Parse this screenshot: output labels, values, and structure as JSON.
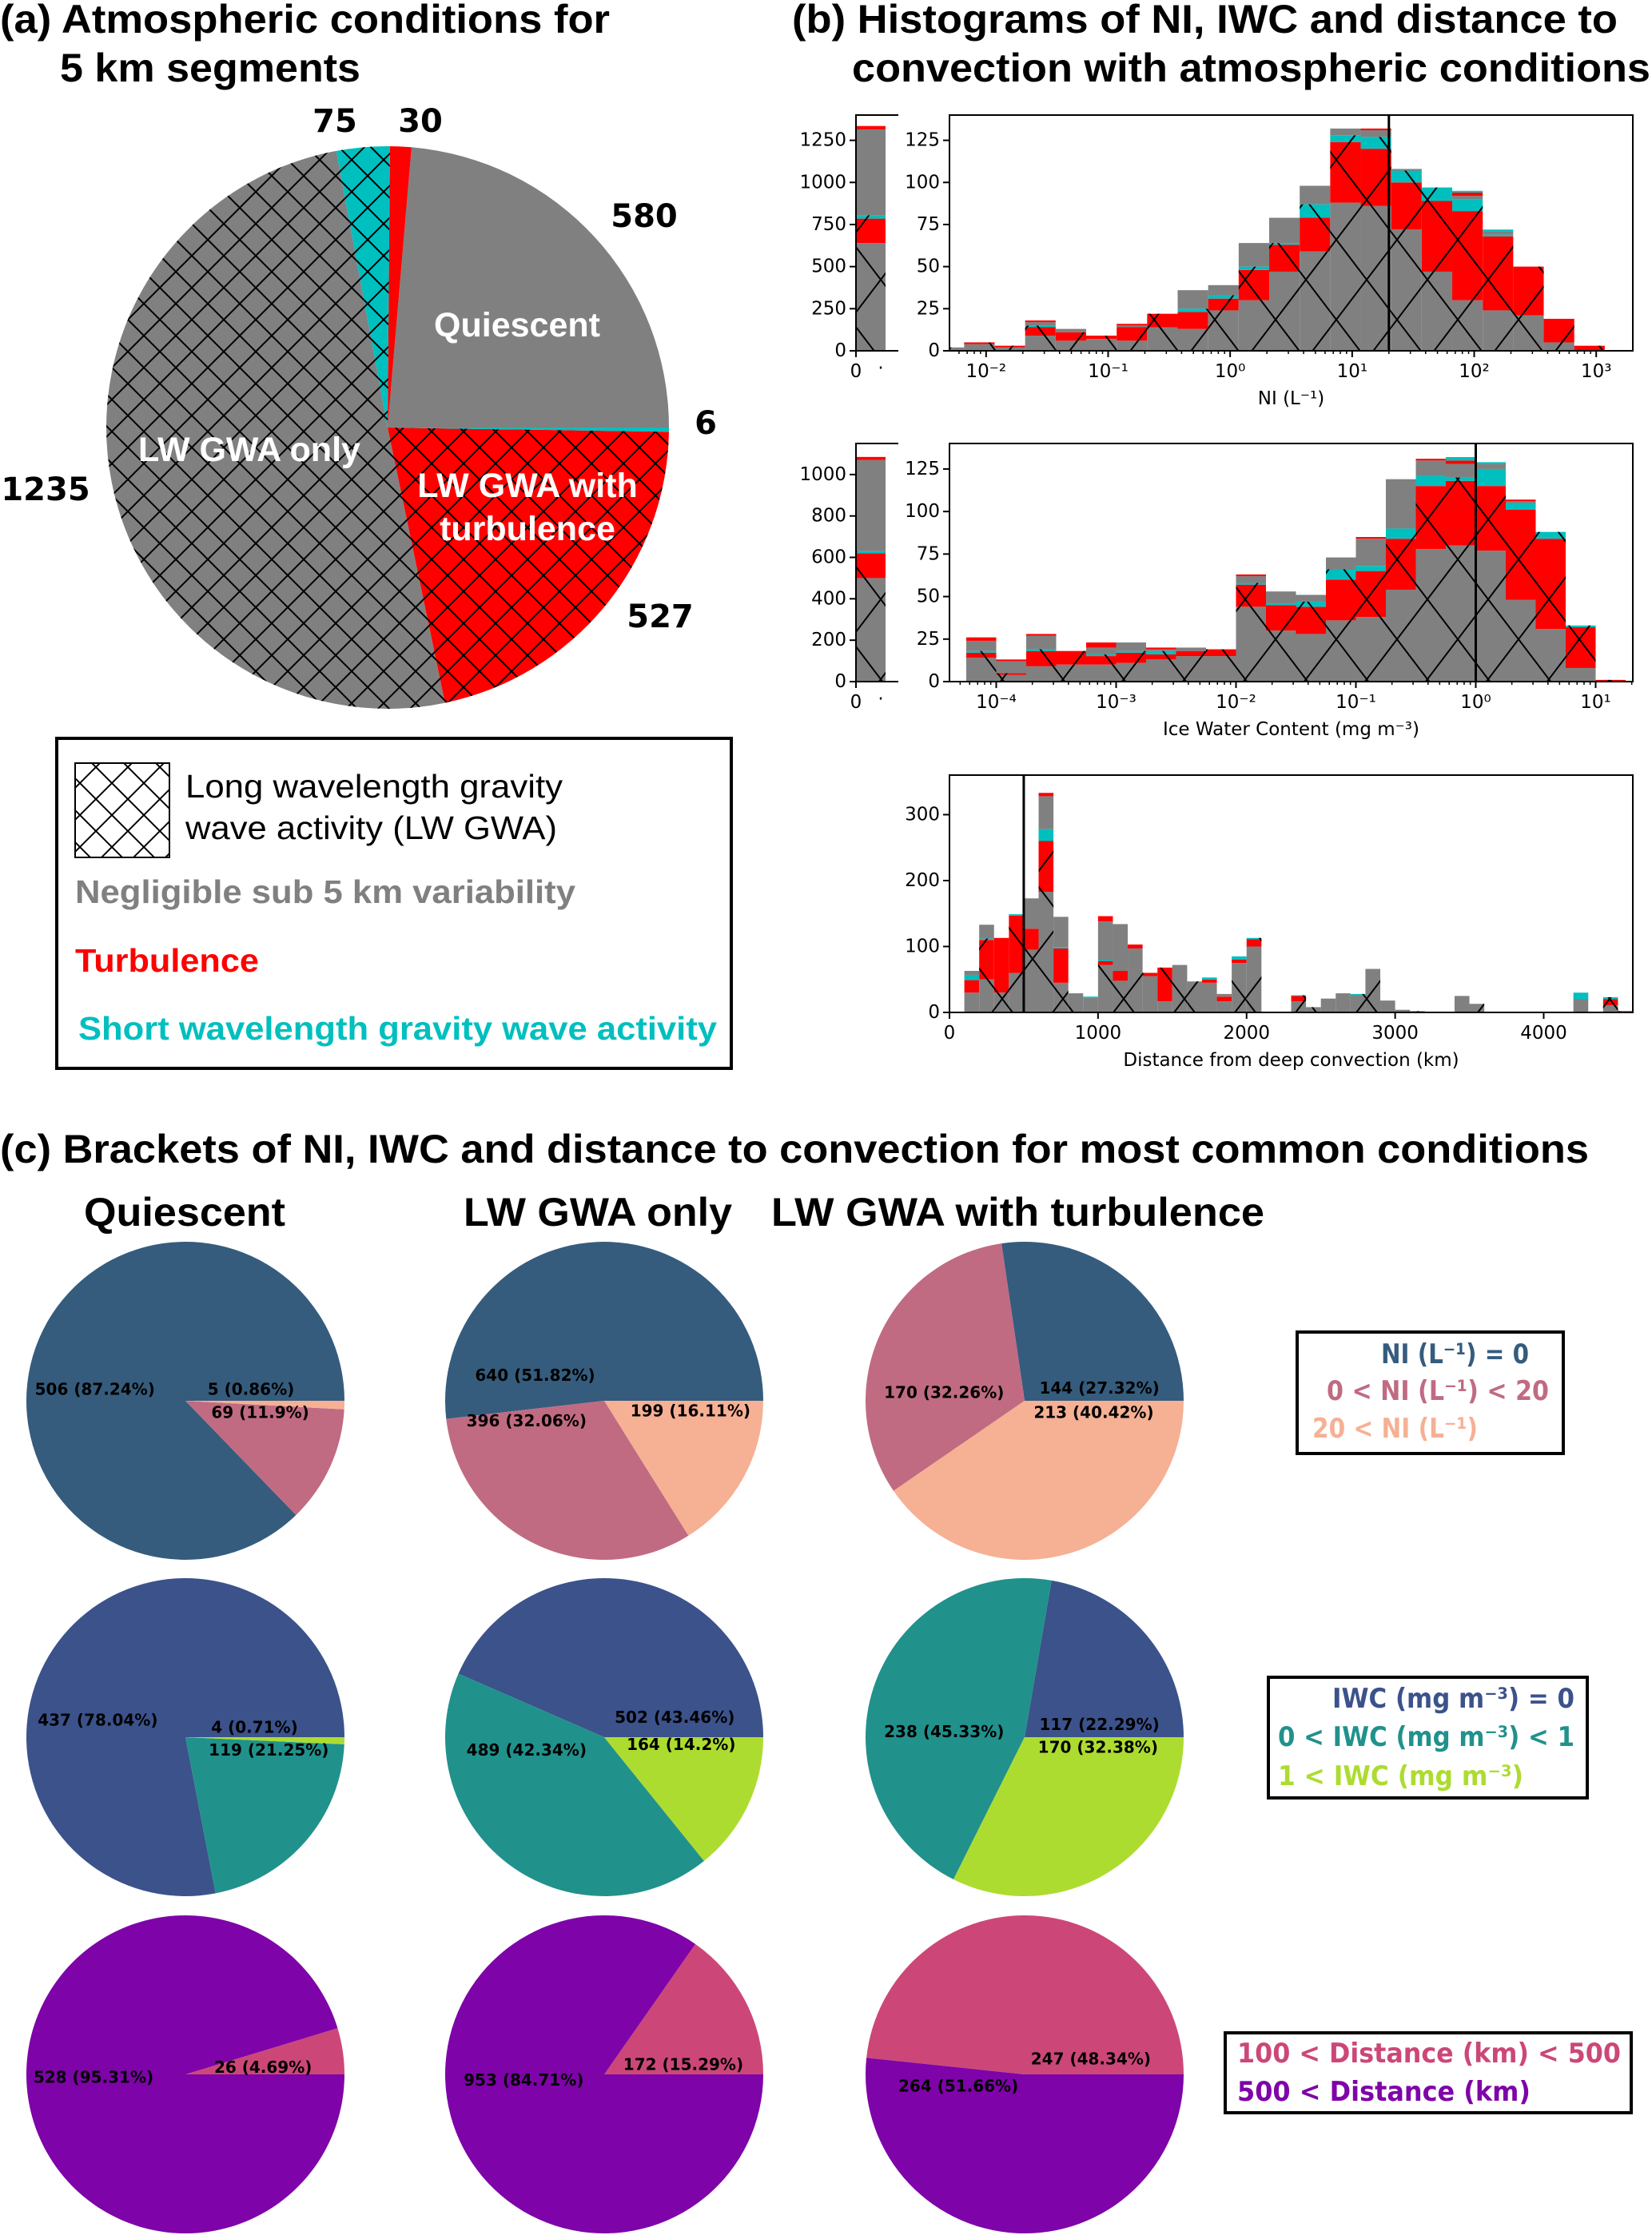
{
  "panel_a": {
    "title": [
      "(a) Atmospheric conditions for",
      "5 km segments"
    ],
    "legend": {
      "hatch_label": [
        "Long wavelength gravity",
        "wave activity (LW GWA)"
      ],
      "items": [
        {
          "text": "Negligible sub 5 km variability",
          "color": "#808080"
        },
        {
          "text": "Turbulence",
          "color": "#ff0000"
        },
        {
          "text": "Short wavelength gravity wave activity",
          "color": "#00bfbf"
        }
      ]
    }
  },
  "panel_b": {
    "title": [
      "(b) Histograms of NI, IWC and distance to",
      "convection with atmospheric conditions"
    ],
    "layers": [
      {
        "color": "#808080",
        "hatch": true
      },
      {
        "color": "#ff0000",
        "hatch": true
      },
      {
        "color": "#00bfbf",
        "hatch": true
      },
      {
        "color": "#808080",
        "hatch": false
      },
      {
        "color": "#ff0000",
        "hatch": false
      },
      {
        "color": "#00bfbf",
        "hatch": false
      }
    ]
  },
  "panel_c": {
    "title": "(c) Brackets of NI, IWC and distance to convection for most common conditions",
    "columns": [
      "Quiescent",
      "LW GWA only",
      "LW GWA with turbulence"
    ],
    "legends": [
      {
        "items": [
          {
            "text": "NI (L⁻¹) = 0",
            "color": "#355c7d"
          },
          {
            "text": "0 < NI (L⁻¹) < 20",
            "color": "#c06b82"
          },
          {
            "text": "20 < NI (L⁻¹)",
            "color": "#f6b094"
          }
        ]
      },
      {
        "items": [
          {
            "text": "IWC (mg m⁻³) = 0",
            "color": "#3b528b"
          },
          {
            "text": "0 < IWC (mg m⁻³) < 1",
            "color": "#21918c"
          },
          {
            "text": "1 < IWC (mg m⁻³)",
            "color": "#addc30"
          }
        ]
      },
      {
        "items": [
          {
            "text": "100 < Distance (km) < 500",
            "color": "#cc4778"
          },
          {
            "text": "500 < Distance (km)",
            "color": "#7e03a8"
          }
        ]
      }
    ]
  },
  "chart_data": [
    {
      "type": "pie",
      "title": "(a) Atmospheric conditions for 5 km segments",
      "start_angle_deg": 0,
      "direction": "counterclockwise",
      "slices": [
        {
          "value": 580,
          "value_label": "580",
          "color": "#808080",
          "hatch": false,
          "inner_label": [
            "Quiescent"
          ]
        },
        {
          "value": 30,
          "value_label": "30",
          "color": "#ff0000",
          "hatch": false
        },
        {
          "value": 75,
          "value_label": "75",
          "color": "#00bfbf",
          "hatch": true
        },
        {
          "value": 1235,
          "value_label": "1235",
          "color": "#808080",
          "hatch": true,
          "inner_label": [
            "LW GWA only"
          ]
        },
        {
          "value": 527,
          "value_label": "527",
          "color": "#ff0000",
          "hatch": true,
          "inner_label": [
            "LW GWA with",
            "turbulence"
          ]
        },
        {
          "value": 6,
          "value_label": "6",
          "color": "#00bfbf",
          "hatch": false
        }
      ]
    },
    {
      "type": "bar",
      "stacked": true,
      "xlabel": "NI (L⁻¹)",
      "xscale": "log",
      "xlim_log10": [
        -2.3,
        3.3
      ],
      "ylim": [
        0,
        140
      ],
      "yticks": [
        0,
        25,
        50,
        75,
        100,
        125
      ],
      "xticks": [
        {
          "value": -2,
          "label": "10⁻²"
        },
        {
          "value": -1,
          "label": "10⁻¹"
        },
        {
          "value": 0,
          "label": "10⁰"
        },
        {
          "value": 1,
          "label": "10¹"
        },
        {
          "value": 2,
          "label": "10²"
        },
        {
          "value": 3,
          "label": "10³"
        }
      ],
      "ref_value": 20,
      "bin_start_log10": -2.43,
      "bin_width_log10": 0.25,
      "bins": [
        [
          2,
          0,
          0,
          0,
          0,
          0
        ],
        [
          4,
          1,
          0,
          0,
          0,
          0
        ],
        [
          2,
          1,
          0,
          0,
          0,
          0
        ],
        [
          9,
          5,
          1,
          2,
          1,
          0
        ],
        [
          6,
          5,
          0,
          2,
          0,
          0
        ],
        [
          7,
          2,
          0,
          0,
          0,
          0
        ],
        [
          6,
          8,
          0,
          1,
          1,
          0
        ],
        [
          14,
          8,
          0,
          0,
          0,
          0
        ],
        [
          13,
          10,
          2,
          11,
          0,
          0
        ],
        [
          24,
          7,
          2,
          6,
          0,
          0
        ],
        [
          30,
          18,
          2,
          14,
          0,
          0
        ],
        [
          47,
          16,
          1,
          15,
          0,
          0
        ],
        [
          59,
          20,
          8,
          11,
          0,
          0
        ],
        [
          88,
          36,
          4,
          4,
          0,
          0
        ],
        [
          86,
          34,
          7,
          4,
          1,
          0
        ],
        [
          72,
          28,
          7,
          1,
          0,
          0
        ],
        [
          47,
          42,
          8,
          0,
          0,
          0
        ],
        [
          30,
          53,
          7,
          2,
          2,
          1
        ],
        [
          24,
          44,
          1,
          2,
          0,
          1
        ],
        [
          21,
          29,
          0,
          0,
          0,
          0
        ],
        [
          5,
          14,
          0,
          0,
          0,
          0
        ],
        [
          0,
          3,
          0,
          0,
          0,
          0
        ]
      ],
      "zero_bin": {
        "ylim": [
          0,
          1400
        ],
        "yticks": [
          0,
          250,
          500,
          750,
          1000,
          1250
        ],
        "stack": [
          640,
          145,
          20,
          510,
          20,
          0
        ],
        "xtick_labels": [
          "0",
          "·"
        ]
      }
    },
    {
      "type": "bar",
      "stacked": true,
      "xlabel": "Ice Water Content (mg m⁻³)",
      "xscale": "log",
      "xlim_log10": [
        -4.39,
        1.31
      ],
      "ylim": [
        0,
        140
      ],
      "yticks": [
        0,
        25,
        50,
        75,
        100,
        125
      ],
      "xticks": [
        {
          "value": -4,
          "label": "10⁻⁴"
        },
        {
          "value": -3,
          "label": "10⁻³"
        },
        {
          "value": -2,
          "label": "10⁻²"
        },
        {
          "value": -1,
          "label": "10⁻¹"
        },
        {
          "value": 0,
          "label": "10⁰"
        },
        {
          "value": 1,
          "label": "10¹"
        }
      ],
      "ref_value": 1,
      "bin_start_log10": -4.25,
      "bin_width_log10": 0.25,
      "bins": [
        [
          14,
          3,
          1,
          6,
          2,
          0
        ],
        [
          4,
          1,
          0,
          7,
          1,
          0
        ],
        [
          9,
          9,
          1,
          8,
          1,
          0
        ],
        [
          10,
          8,
          0,
          0,
          0,
          0
        ],
        [
          10,
          5,
          1,
          4,
          3,
          0
        ],
        [
          11,
          6,
          1,
          5,
          0,
          0
        ],
        [
          13,
          3,
          2,
          1,
          1,
          0
        ],
        [
          15,
          3,
          0,
          2,
          0,
          0
        ],
        [
          15,
          4,
          0,
          0,
          0,
          0
        ],
        [
          44,
          13,
          1,
          4,
          1,
          0
        ],
        [
          30,
          15,
          1,
          7,
          0,
          0
        ],
        [
          28,
          16,
          3,
          4,
          0,
          0
        ],
        [
          36,
          24,
          6,
          7,
          0,
          0
        ],
        [
          38,
          27,
          3,
          16,
          1,
          0
        ],
        [
          54,
          30,
          6,
          29,
          0,
          0
        ],
        [
          78,
          37,
          6,
          9,
          1,
          0
        ],
        [
          80,
          38,
          2,
          8,
          2,
          2
        ],
        [
          77,
          38,
          10,
          3,
          0,
          1
        ],
        [
          48,
          53,
          4,
          1,
          1,
          0
        ],
        [
          31,
          53,
          4,
          0,
          0,
          0
        ],
        [
          8,
          24,
          1,
          0,
          0,
          0
        ],
        [
          0,
          1,
          0,
          0,
          0,
          0
        ]
      ],
      "zero_bin": {
        "ylim": [
          0,
          1150
        ],
        "yticks": [
          0,
          200,
          400,
          600,
          800,
          1000
        ],
        "stack": [
          500,
          120,
          10,
          440,
          15,
          0
        ],
        "xtick_labels": [
          "0",
          "·"
        ]
      }
    },
    {
      "type": "bar",
      "stacked": true,
      "xlabel": "Distance from deep convection (km)",
      "xscale": "linear",
      "xlim": [
        0,
        4600
      ],
      "ylim": [
        0,
        360
      ],
      "yticks": [
        0,
        100,
        200,
        300
      ],
      "xticks": [
        {
          "value": 0,
          "label": "0"
        },
        {
          "value": 1000,
          "label": "1000"
        },
        {
          "value": 2000,
          "label": "2000"
        },
        {
          "value": 3000,
          "label": "3000"
        },
        {
          "value": 4000,
          "label": "4000"
        }
      ],
      "ref_value": 500,
      "bin_start": 100,
      "bin_width": 100,
      "bins": [
        [
          30,
          19,
          8,
          6,
          0,
          0
        ],
        [
          50,
          60,
          2,
          21,
          0,
          0
        ],
        [
          30,
          83,
          0,
          0,
          0,
          0
        ],
        [
          60,
          87,
          2,
          0,
          0,
          0
        ],
        [
          95,
          32,
          0,
          46,
          0,
          0
        ],
        [
          183,
          77,
          18,
          50,
          5,
          0
        ],
        [
          45,
          52,
          2,
          46,
          0,
          0
        ],
        [
          29,
          0,
          0,
          0,
          0,
          0
        ],
        [
          22,
          0,
          2,
          0,
          0,
          0
        ],
        [
          72,
          6,
          2,
          58,
          8,
          0
        ],
        [
          48,
          15,
          0,
          71,
          0,
          0
        ],
        [
          97,
          0,
          0,
          0,
          6,
          0
        ],
        [
          55,
          5,
          0,
          0,
          0,
          0
        ],
        [
          17,
          51,
          0,
          0,
          0,
          0
        ],
        [
          72,
          0,
          0,
          0,
          0,
          0
        ],
        [
          47,
          0,
          0,
          0,
          0,
          0
        ],
        [
          45,
          5,
          3,
          0,
          0,
          0
        ],
        [
          17,
          7,
          0,
          4,
          0,
          0
        ],
        [
          75,
          5,
          5,
          0,
          0,
          0
        ],
        [
          100,
          11,
          2,
          0,
          0,
          0
        ],
        [
          0,
          0,
          0,
          0,
          0,
          0
        ],
        [
          0,
          0,
          0,
          0,
          0,
          0
        ],
        [
          17,
          8,
          1,
          0,
          0,
          0
        ],
        [
          8,
          0,
          0,
          0,
          0,
          0
        ],
        [
          21,
          0,
          0,
          0,
          0,
          0
        ],
        [
          29,
          0,
          0,
          0,
          0,
          0
        ],
        [
          26,
          0,
          2,
          0,
          0,
          0
        ],
        [
          66,
          0,
          0,
          0,
          0,
          0
        ],
        [
          18,
          0,
          0,
          0,
          0,
          0
        ],
        [
          4,
          0,
          0,
          0,
          0,
          0
        ],
        [
          2,
          0,
          0,
          0,
          0,
          0
        ],
        [
          0,
          0,
          0,
          0,
          0,
          0
        ],
        [
          0,
          0,
          0,
          0,
          0,
          0
        ],
        [
          25,
          0,
          0,
          0,
          0,
          0
        ],
        [
          13,
          0,
          0,
          0,
          0,
          0
        ],
        [
          0,
          0,
          0,
          0,
          0,
          0
        ],
        [
          0,
          0,
          0,
          0,
          0,
          0
        ],
        [
          0,
          0,
          0,
          0,
          0,
          0
        ],
        [
          0,
          0,
          0,
          0,
          0,
          0
        ],
        [
          0,
          0,
          0,
          0,
          0,
          0
        ],
        [
          0,
          0,
          0,
          0,
          0,
          0
        ],
        [
          20,
          0,
          10,
          0,
          0,
          0
        ],
        [
          0,
          0,
          0,
          0,
          0,
          0
        ],
        [
          11,
          9,
          3,
          0,
          0,
          0
        ],
        [
          0,
          2,
          0,
          0,
          0,
          0
        ]
      ]
    },
    {
      "type": "pie",
      "slices": [
        {
          "value": 506,
          "label": "506 (87.24%)",
          "color": "#355c7d"
        },
        {
          "value": 69,
          "label": "69 (11.9%)",
          "color": "#c06b82"
        },
        {
          "value": 5,
          "label": "5 (0.86%)",
          "color": "#f6b094"
        }
      ]
    },
    {
      "type": "pie",
      "slices": [
        {
          "value": 640,
          "label": "640 (51.82%)",
          "color": "#355c7d"
        },
        {
          "value": 396,
          "label": "396 (32.06%)",
          "color": "#c06b82"
        },
        {
          "value": 199,
          "label": "199 (16.11%)",
          "color": "#f6b094"
        }
      ]
    },
    {
      "type": "pie",
      "slices": [
        {
          "value": 144,
          "label": "144 (27.32%)",
          "color": "#355c7d"
        },
        {
          "value": 170,
          "label": "170 (32.26%)",
          "color": "#c06b82"
        },
        {
          "value": 213,
          "label": "213 (40.42%)",
          "color": "#f6b094"
        }
      ]
    },
    {
      "type": "pie",
      "slices": [
        {
          "value": 437,
          "label": "437 (78.04%)",
          "color": "#3b528b"
        },
        {
          "value": 119,
          "label": "119 (21.25%)",
          "color": "#21918c"
        },
        {
          "value": 4,
          "label": "4 (0.71%)",
          "color": "#addc30"
        }
      ]
    },
    {
      "type": "pie",
      "slices": [
        {
          "value": 502,
          "label": "502 (43.46%)",
          "color": "#3b528b"
        },
        {
          "value": 489,
          "label": "489 (42.34%)",
          "color": "#21918c"
        },
        {
          "value": 164,
          "label": "164 (14.2%)",
          "color": "#addc30"
        }
      ]
    },
    {
      "type": "pie",
      "slices": [
        {
          "value": 117,
          "label": "117 (22.29%)",
          "color": "#3b528b"
        },
        {
          "value": 238,
          "label": "238 (45.33%)",
          "color": "#21918c"
        },
        {
          "value": 170,
          "label": "170 (32.38%)",
          "color": "#addc30"
        }
      ]
    },
    {
      "type": "pie",
      "slices": [
        {
          "value": 26,
          "label": "26 (4.69%)",
          "color": "#cc4778"
        },
        {
          "value": 528,
          "label": "528 (95.31%)",
          "color": "#7e03a8"
        }
      ]
    },
    {
      "type": "pie",
      "slices": [
        {
          "value": 172,
          "label": "172 (15.29%)",
          "color": "#cc4778"
        },
        {
          "value": 953,
          "label": "953 (84.71%)",
          "color": "#7e03a8"
        }
      ]
    },
    {
      "type": "pie",
      "slices": [
        {
          "value": 247,
          "label": "247 (48.34%)",
          "color": "#cc4778"
        },
        {
          "value": 264,
          "label": "264 (51.66%)",
          "color": "#7e03a8"
        }
      ]
    }
  ]
}
